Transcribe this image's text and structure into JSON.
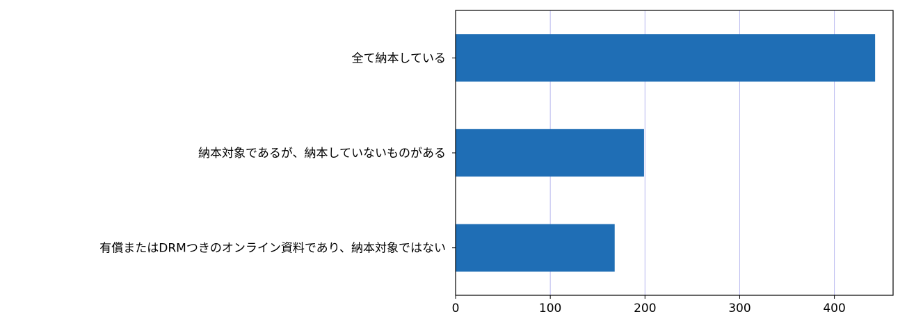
{
  "chart_data": {
    "type": "bar",
    "orientation": "horizontal",
    "categories": [
      "全て納本している",
      "納本対象であるが、納本していないものがある",
      "有償またはDRMつきのオンライン資料であり、納本対象ではない"
    ],
    "values": [
      443,
      199,
      168
    ],
    "xlim": [
      0,
      462
    ],
    "xticks": [
      0,
      100,
      200,
      300,
      400
    ],
    "title": "",
    "xlabel": "",
    "ylabel": "",
    "grid": "vertical",
    "legend": "none",
    "colors": {
      "bar": "#1f6eb5",
      "grid": "#b8b8ee",
      "axis": "#000000"
    }
  }
}
